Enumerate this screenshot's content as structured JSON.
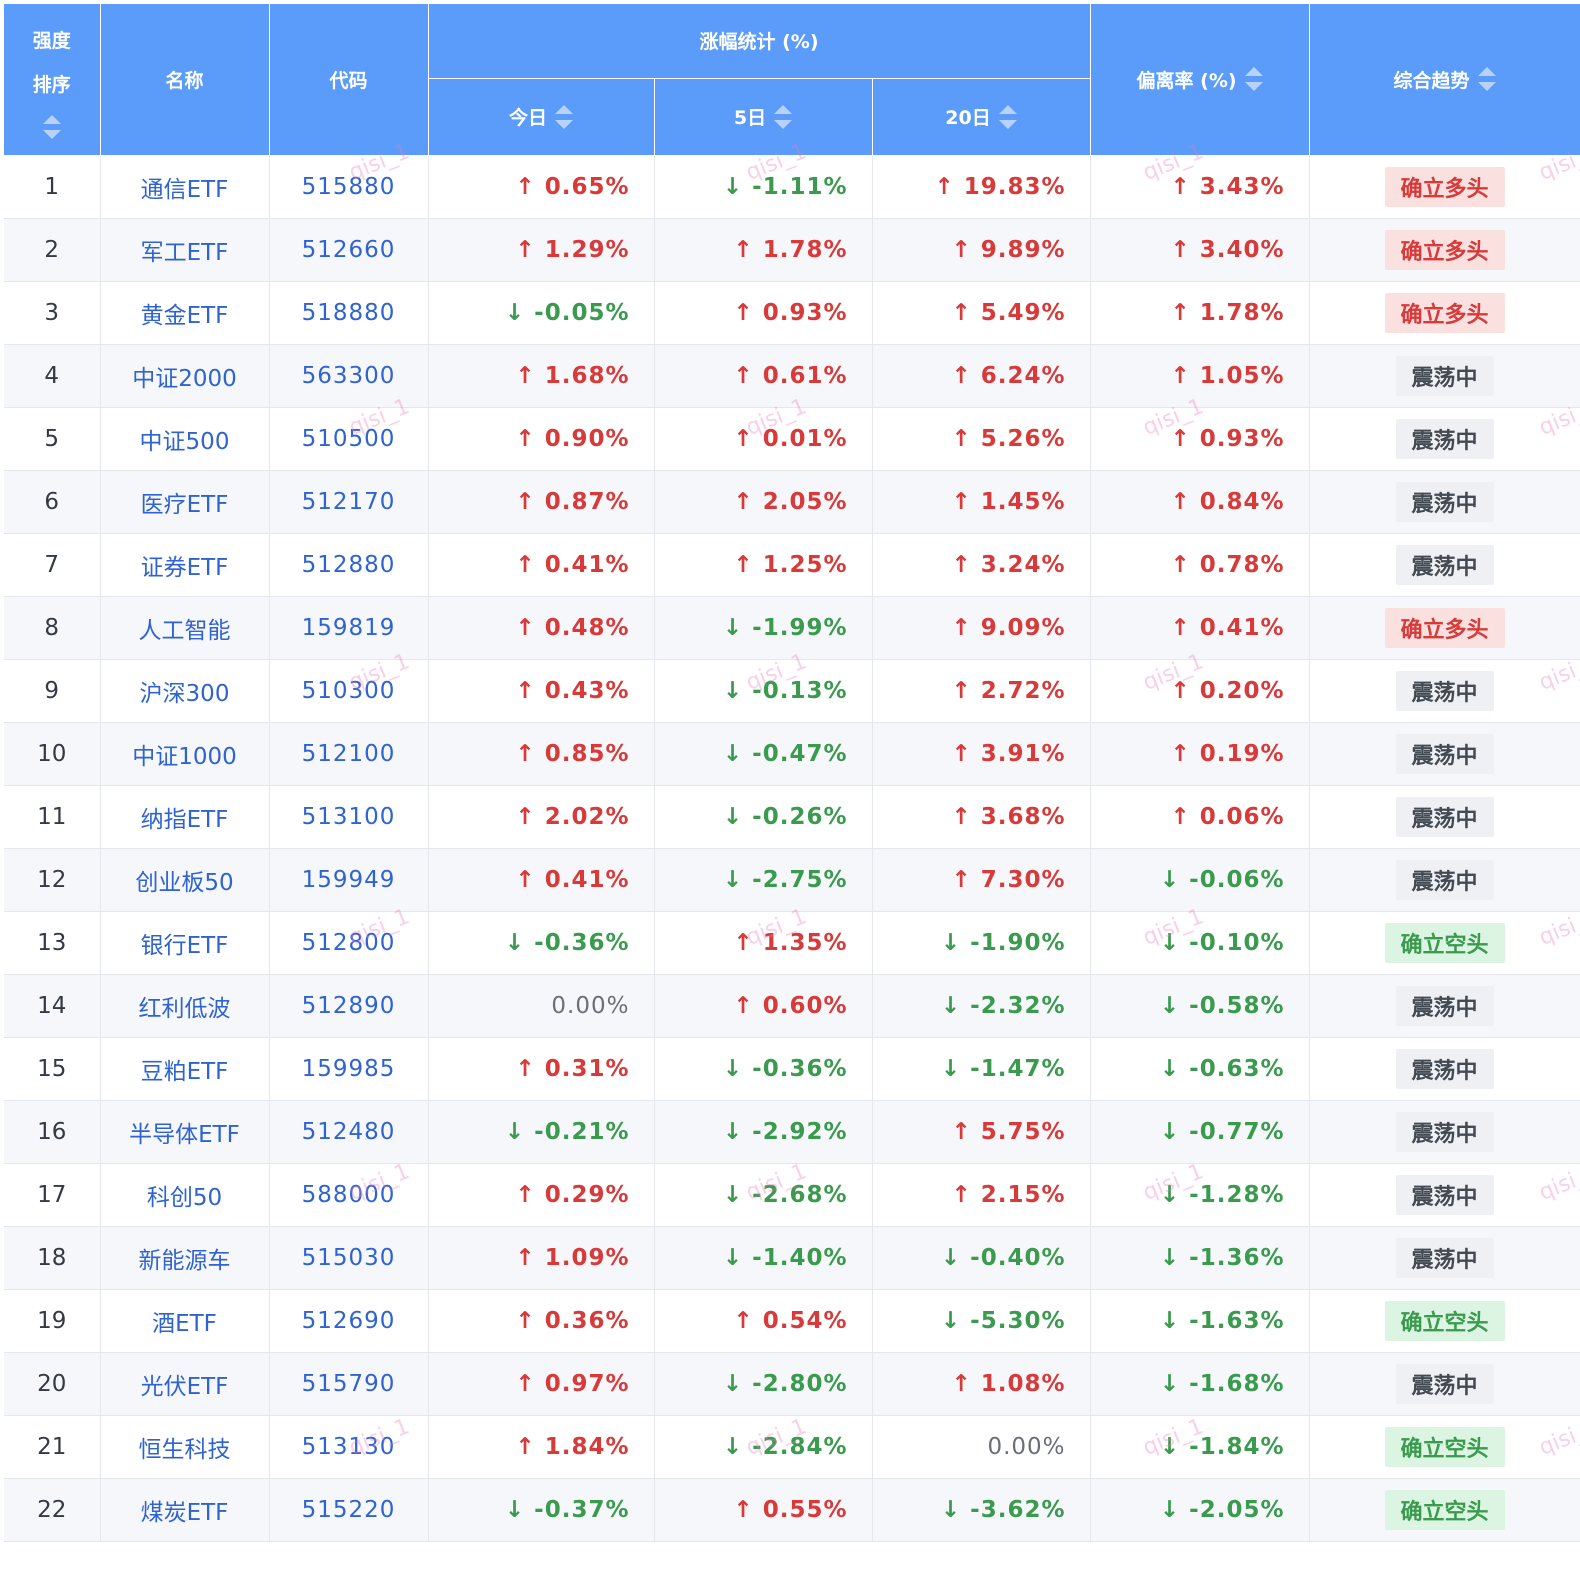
{
  "headers": {
    "rank_line1": "强度",
    "rank_line2": "排序",
    "name": "名称",
    "code": "代码",
    "gain_group": "涨幅统计 (%)",
    "today": "今日",
    "d5": "5日",
    "d20": "20日",
    "deviation": "偏离率 (%)",
    "trend": "综合趋势"
  },
  "watermark": "qisi_1",
  "rows": [
    {
      "rank": "1",
      "name": "通信ETF",
      "code": "515880",
      "today": "↑ 0.65%",
      "today_dir": "up",
      "d5": "↓ -1.11%",
      "d5_dir": "down",
      "d20": "↑ 19.83%",
      "d20_dir": "up",
      "dev": "↑ 3.43%",
      "dev_dir": "up",
      "trend": "确立多头",
      "trend_type": "bull"
    },
    {
      "rank": "2",
      "name": "军工ETF",
      "code": "512660",
      "today": "↑ 1.29%",
      "today_dir": "up",
      "d5": "↑ 1.78%",
      "d5_dir": "up",
      "d20": "↑ 9.89%",
      "d20_dir": "up",
      "dev": "↑ 3.40%",
      "dev_dir": "up",
      "trend": "确立多头",
      "trend_type": "bull"
    },
    {
      "rank": "3",
      "name": "黄金ETF",
      "code": "518880",
      "today": "↓ -0.05%",
      "today_dir": "down",
      "d5": "↑ 0.93%",
      "d5_dir": "up",
      "d20": "↑ 5.49%",
      "d20_dir": "up",
      "dev": "↑ 1.78%",
      "dev_dir": "up",
      "trend": "确立多头",
      "trend_type": "bull"
    },
    {
      "rank": "4",
      "name": "中证2000",
      "code": "563300",
      "today": "↑ 1.68%",
      "today_dir": "up",
      "d5": "↑ 0.61%",
      "d5_dir": "up",
      "d20": "↑ 6.24%",
      "d20_dir": "up",
      "dev": "↑ 1.05%",
      "dev_dir": "up",
      "trend": "震荡中",
      "trend_type": "neutral"
    },
    {
      "rank": "5",
      "name": "中证500",
      "code": "510500",
      "today": "↑ 0.90%",
      "today_dir": "up",
      "d5": "↑ 0.01%",
      "d5_dir": "up",
      "d20": "↑ 5.26%",
      "d20_dir": "up",
      "dev": "↑ 0.93%",
      "dev_dir": "up",
      "trend": "震荡中",
      "trend_type": "neutral"
    },
    {
      "rank": "6",
      "name": "医疗ETF",
      "code": "512170",
      "today": "↑ 0.87%",
      "today_dir": "up",
      "d5": "↑ 2.05%",
      "d5_dir": "up",
      "d20": "↑ 1.45%",
      "d20_dir": "up",
      "dev": "↑ 0.84%",
      "dev_dir": "up",
      "trend": "震荡中",
      "trend_type": "neutral"
    },
    {
      "rank": "7",
      "name": "证券ETF",
      "code": "512880",
      "today": "↑ 0.41%",
      "today_dir": "up",
      "d5": "↑ 1.25%",
      "d5_dir": "up",
      "d20": "↑ 3.24%",
      "d20_dir": "up",
      "dev": "↑ 0.78%",
      "dev_dir": "up",
      "trend": "震荡中",
      "trend_type": "neutral"
    },
    {
      "rank": "8",
      "name": "人工智能",
      "code": "159819",
      "today": "↑ 0.48%",
      "today_dir": "up",
      "d5": "↓ -1.99%",
      "d5_dir": "down",
      "d20": "↑ 9.09%",
      "d20_dir": "up",
      "dev": "↑ 0.41%",
      "dev_dir": "up",
      "trend": "确立多头",
      "trend_type": "bull"
    },
    {
      "rank": "9",
      "name": "沪深300",
      "code": "510300",
      "today": "↑ 0.43%",
      "today_dir": "up",
      "d5": "↓ -0.13%",
      "d5_dir": "down",
      "d20": "↑ 2.72%",
      "d20_dir": "up",
      "dev": "↑ 0.20%",
      "dev_dir": "up",
      "trend": "震荡中",
      "trend_type": "neutral"
    },
    {
      "rank": "10",
      "name": "中证1000",
      "code": "512100",
      "today": "↑ 0.85%",
      "today_dir": "up",
      "d5": "↓ -0.47%",
      "d5_dir": "down",
      "d20": "↑ 3.91%",
      "d20_dir": "up",
      "dev": "↑ 0.19%",
      "dev_dir": "up",
      "trend": "震荡中",
      "trend_type": "neutral"
    },
    {
      "rank": "11",
      "name": "纳指ETF",
      "code": "513100",
      "today": "↑ 2.02%",
      "today_dir": "up",
      "d5": "↓ -0.26%",
      "d5_dir": "down",
      "d20": "↑ 3.68%",
      "d20_dir": "up",
      "dev": "↑ 0.06%",
      "dev_dir": "up",
      "trend": "震荡中",
      "trend_type": "neutral"
    },
    {
      "rank": "12",
      "name": "创业板50",
      "code": "159949",
      "today": "↑ 0.41%",
      "today_dir": "up",
      "d5": "↓ -2.75%",
      "d5_dir": "down",
      "d20": "↑ 7.30%",
      "d20_dir": "up",
      "dev": "↓ -0.06%",
      "dev_dir": "down",
      "trend": "震荡中",
      "trend_type": "neutral"
    },
    {
      "rank": "13",
      "name": "银行ETF",
      "code": "512800",
      "today": "↓ -0.36%",
      "today_dir": "down",
      "d5": "↑ 1.35%",
      "d5_dir": "up",
      "d20": "↓ -1.90%",
      "d20_dir": "down",
      "dev": "↓ -0.10%",
      "dev_dir": "down",
      "trend": "确立空头",
      "trend_type": "bear"
    },
    {
      "rank": "14",
      "name": "红利低波",
      "code": "512890",
      "today": "0.00%",
      "today_dir": "flat",
      "d5": "↑ 0.60%",
      "d5_dir": "up",
      "d20": "↓ -2.32%",
      "d20_dir": "down",
      "dev": "↓ -0.58%",
      "dev_dir": "down",
      "trend": "震荡中",
      "trend_type": "neutral"
    },
    {
      "rank": "15",
      "name": "豆粕ETF",
      "code": "159985",
      "today": "↑ 0.31%",
      "today_dir": "up",
      "d5": "↓ -0.36%",
      "d5_dir": "down",
      "d20": "↓ -1.47%",
      "d20_dir": "down",
      "dev": "↓ -0.63%",
      "dev_dir": "down",
      "trend": "震荡中",
      "trend_type": "neutral"
    },
    {
      "rank": "16",
      "name": "半导体ETF",
      "code": "512480",
      "today": "↓ -0.21%",
      "today_dir": "down",
      "d5": "↓ -2.92%",
      "d5_dir": "down",
      "d20": "↑ 5.75%",
      "d20_dir": "up",
      "dev": "↓ -0.77%",
      "dev_dir": "down",
      "trend": "震荡中",
      "trend_type": "neutral"
    },
    {
      "rank": "17",
      "name": "科创50",
      "code": "588000",
      "today": "↑ 0.29%",
      "today_dir": "up",
      "d5": "↓ -2.68%",
      "d5_dir": "down",
      "d20": "↑ 2.15%",
      "d20_dir": "up",
      "dev": "↓ -1.28%",
      "dev_dir": "down",
      "trend": "震荡中",
      "trend_type": "neutral"
    },
    {
      "rank": "18",
      "name": "新能源车",
      "code": "515030",
      "today": "↑ 1.09%",
      "today_dir": "up",
      "d5": "↓ -1.40%",
      "d5_dir": "down",
      "d20": "↓ -0.40%",
      "d20_dir": "down",
      "dev": "↓ -1.36%",
      "dev_dir": "down",
      "trend": "震荡中",
      "trend_type": "neutral"
    },
    {
      "rank": "19",
      "name": "酒ETF",
      "code": "512690",
      "today": "↑ 0.36%",
      "today_dir": "up",
      "d5": "↑ 0.54%",
      "d5_dir": "up",
      "d20": "↓ -5.30%",
      "d20_dir": "down",
      "dev": "↓ -1.63%",
      "dev_dir": "down",
      "trend": "确立空头",
      "trend_type": "bear"
    },
    {
      "rank": "20",
      "name": "光伏ETF",
      "code": "515790",
      "today": "↑ 0.97%",
      "today_dir": "up",
      "d5": "↓ -2.80%",
      "d5_dir": "down",
      "d20": "↑ 1.08%",
      "d20_dir": "up",
      "dev": "↓ -1.68%",
      "dev_dir": "down",
      "trend": "震荡中",
      "trend_type": "neutral"
    },
    {
      "rank": "21",
      "name": "恒生科技",
      "code": "513130",
      "today": "↑ 1.84%",
      "today_dir": "up",
      "d5": "↓ -2.84%",
      "d5_dir": "down",
      "d20": "0.00%",
      "d20_dir": "flat",
      "dev": "↓ -1.84%",
      "dev_dir": "down",
      "trend": "确立空头",
      "trend_type": "bear"
    },
    {
      "rank": "22",
      "name": "煤炭ETF",
      "code": "515220",
      "today": "↓ -0.37%",
      "today_dir": "down",
      "d5": "↑ 0.55%",
      "d5_dir": "up",
      "d20": "↓ -3.62%",
      "d20_dir": "down",
      "dev": "↓ -2.05%",
      "dev_dir": "down",
      "trend": "确立空头",
      "trend_type": "bear"
    }
  ]
}
